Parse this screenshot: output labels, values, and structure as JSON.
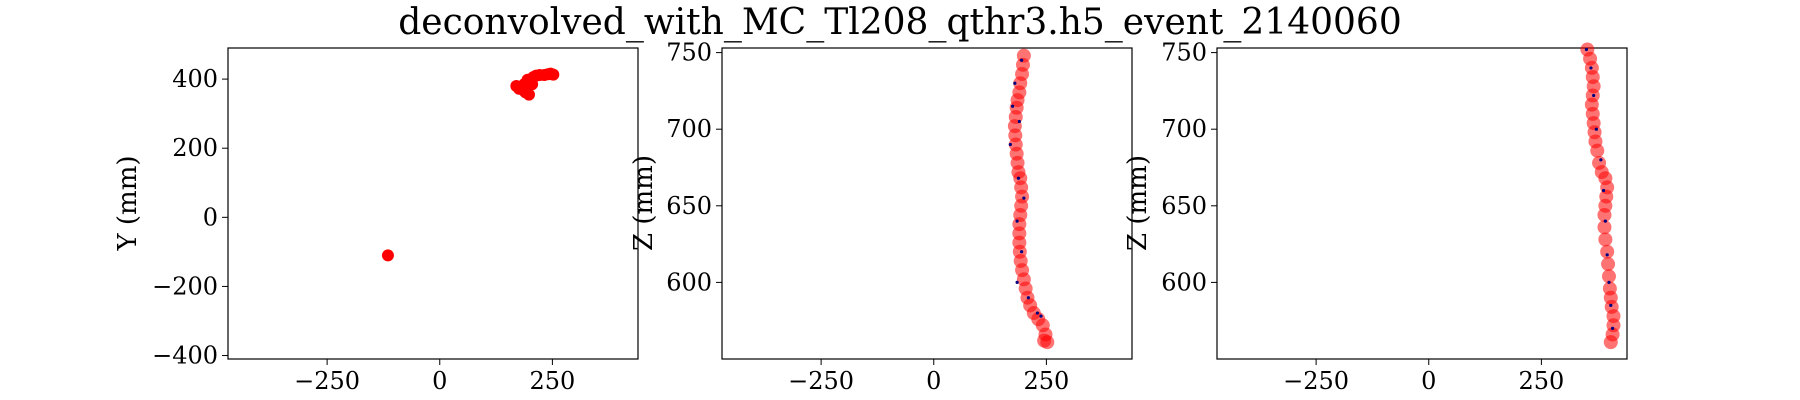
{
  "figure": {
    "title": "deconvolved_with_MC_Tl208_qthr3.h5_event_2140060"
  },
  "chart_data": [
    {
      "type": "scatter",
      "ylabel": "Y (mm)",
      "xlim": [
        -470,
        440
      ],
      "ylim": [
        -410,
        490
      ],
      "xticks": [
        -250,
        0,
        250
      ],
      "yticks": [
        -400,
        -200,
        0,
        200,
        400
      ],
      "series": [
        {
          "color": "#ff0000",
          "points": [
            [
              -115,
              -110
            ],
            [
              170,
              380
            ],
            [
              176,
              372
            ],
            [
              182,
              378
            ],
            [
              190,
              362
            ],
            [
              198,
              355
            ],
            [
              188,
              386
            ],
            [
              195,
              398
            ],
            [
              202,
              400
            ],
            [
              208,
              406
            ],
            [
              214,
              410
            ],
            [
              222,
              412
            ],
            [
              232,
              412
            ],
            [
              240,
              414
            ],
            [
              246,
              416
            ],
            [
              252,
              413
            ],
            [
              184,
              370
            ],
            [
              205,
              385
            ]
          ]
        }
      ]
    },
    {
      "type": "scatter",
      "ylabel": "Z (mm)",
      "xlim": [
        -470,
        440
      ],
      "ylim": [
        550,
        753
      ],
      "xticks": [
        -250,
        0,
        250
      ],
      "yticks": [
        600,
        650,
        700,
        750
      ],
      "series": [
        {
          "color": "#ff0000",
          "points": [
            [
              200,
              748
            ],
            [
              198,
              742
            ],
            [
              196,
              736
            ],
            [
              192,
              730
            ],
            [
              190,
              724
            ],
            [
              186,
              719
            ],
            [
              184,
              714
            ],
            [
              182,
              708
            ],
            [
              180,
              702
            ],
            [
              181,
              696
            ],
            [
              182,
              690
            ],
            [
              184,
              684
            ],
            [
              186,
              678
            ],
            [
              188,
              672
            ],
            [
              192,
              668
            ],
            [
              194,
              662
            ],
            [
              196,
              656
            ],
            [
              194,
              650
            ],
            [
              192,
              644
            ],
            [
              190,
              638
            ],
            [
              190,
              632
            ],
            [
              190,
              626
            ],
            [
              191,
              620
            ],
            [
              193,
              614
            ],
            [
              196,
              608
            ],
            [
              200,
              602
            ],
            [
              204,
              596
            ],
            [
              208,
              590
            ],
            [
              214,
              585
            ],
            [
              222,
              580
            ],
            [
              232,
              576
            ],
            [
              242,
              572
            ],
            [
              248,
              566
            ],
            [
              252,
              561
            ],
            [
              245,
              562
            ]
          ]
        },
        {
          "color": "#000080",
          "points": [
            [
              195,
              745
            ],
            [
              180,
              730
            ],
            [
              175,
              715
            ],
            [
              190,
              705
            ],
            [
              170,
              690
            ],
            [
              188,
              668
            ],
            [
              200,
              655
            ],
            [
              185,
              640
            ],
            [
              195,
              620
            ],
            [
              185,
              600
            ],
            [
              210,
              590
            ],
            [
              230,
              580
            ],
            [
              238,
              578
            ]
          ]
        }
      ]
    },
    {
      "type": "scatter",
      "ylabel": "Z (mm)",
      "xlim": [
        -470,
        440
      ],
      "ylim": [
        550,
        753
      ],
      "xticks": [
        -250,
        0,
        250
      ],
      "yticks": [
        600,
        650,
        700,
        750
      ],
      "series": [
        {
          "color": "#ff0000",
          "points": [
            [
              352,
              752
            ],
            [
              358,
              746
            ],
            [
              362,
              740
            ],
            [
              364,
              734
            ],
            [
              366,
              728
            ],
            [
              364,
              722
            ],
            [
              362,
              716
            ],
            [
              364,
              710
            ],
            [
              366,
              704
            ],
            [
              368,
              698
            ],
            [
              370,
              692
            ],
            [
              374,
              686
            ],
            [
              378,
              678
            ],
            [
              384,
              672
            ],
            [
              392,
              668
            ],
            [
              396,
              662
            ],
            [
              394,
              656
            ],
            [
              392,
              650
            ],
            [
              390,
              644
            ],
            [
              390,
              636
            ],
            [
              392,
              628
            ],
            [
              396,
              620
            ],
            [
              398,
              612
            ],
            [
              400,
              604
            ],
            [
              402,
              596
            ],
            [
              404,
              590
            ],
            [
              406,
              584
            ],
            [
              410,
              578
            ],
            [
              410,
              572
            ],
            [
              408,
              566
            ],
            [
              404,
              561
            ]
          ]
        },
        {
          "color": "#000080",
          "points": [
            [
              350,
              752
            ],
            [
              360,
              740
            ],
            [
              366,
              722
            ],
            [
              372,
              700
            ],
            [
              382,
              680
            ],
            [
              388,
              660
            ],
            [
              392,
              640
            ],
            [
              396,
              618
            ],
            [
              400,
              600
            ],
            [
              404,
              585
            ],
            [
              408,
              570
            ]
          ]
        }
      ]
    }
  ]
}
